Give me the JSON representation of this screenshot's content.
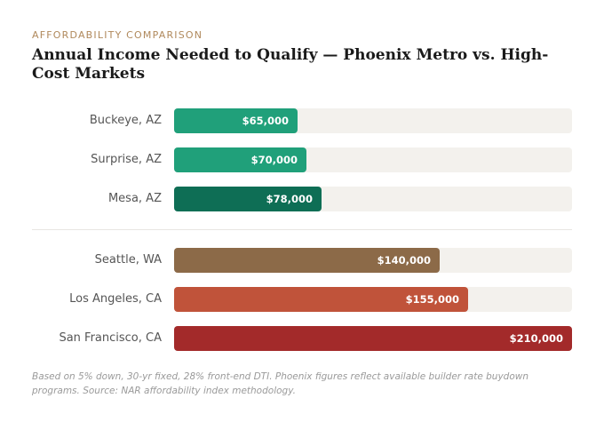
{
  "eyebrow": "AFFORDABILITY COMPARISON",
  "title": "Annual Income Needed to Qualify — Phoenix Metro vs. High-Cost Markets",
  "footnote": "Based on 5% down, 30-yr fixed, 28% front-end DTI. Phoenix figures reflect available builder rate buydown programs. Source: NAR affordability index methodology.",
  "chart_data": {
    "type": "bar",
    "orientation": "horizontal",
    "xlim": [
      0,
      210000
    ],
    "groups": [
      {
        "categories": [
          "Buckeye, AZ",
          "Surprise, AZ",
          "Mesa, AZ"
        ],
        "values": [
          65000,
          70000,
          78000
        ],
        "value_labels": [
          "$65,000",
          "$70,000",
          "$78,000"
        ],
        "colors": [
          "#20a07a",
          "#20a07a",
          "#0e6e55"
        ]
      },
      {
        "categories": [
          "Seattle, WA",
          "Los Angeles, CA",
          "San Francisco, CA"
        ],
        "values": [
          140000,
          155000,
          210000
        ],
        "value_labels": [
          "$140,000",
          "$155,000",
          "$210,000"
        ],
        "colors": [
          "#8c6a48",
          "#c0533a",
          "#a32a2a"
        ]
      }
    ]
  }
}
